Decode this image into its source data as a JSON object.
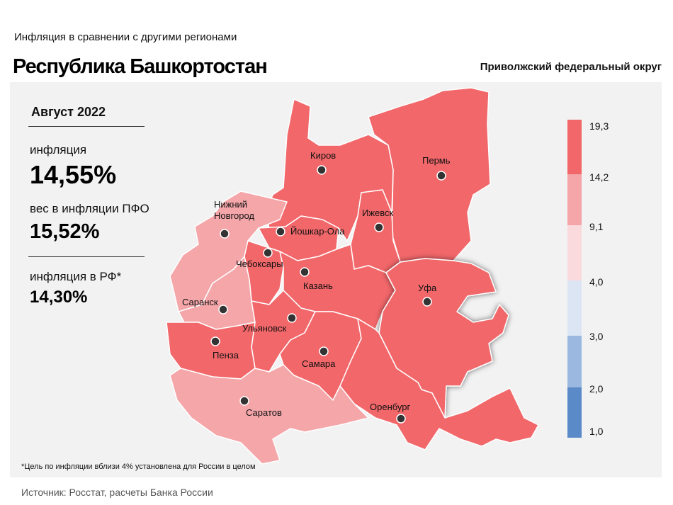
{
  "header": {
    "subtitle": "Инфляция  в сравнении  с другими  регионами",
    "title": "Республика Башкортостан",
    "district": "Приволжский федеральный округ"
  },
  "stats": {
    "month": "Август 2022",
    "inflation_label": "инфляция",
    "inflation_value": "14,55%",
    "weight_label": "вес в инфляции  ПФО",
    "weight_value": "15,52%",
    "rf_label": "инфляция  в РФ*",
    "rf_value": "14,30%"
  },
  "footnote": "*Цель по инфляции вблизи 4% установлена для России в целом",
  "source": "Источник: Росстат, расчеты Банка России",
  "colors": {
    "band_1": "#5b8ac9",
    "band_2": "#9bb8e0",
    "band_3": "#dbe5f4",
    "band_4": "#fadadd",
    "band_5": "#f4a6a9",
    "band_6": "#f2676a"
  },
  "legend": {
    "ticks": [
      "19,3",
      "14,2",
      "9,1",
      "4,0",
      "3,0",
      "2,0",
      "1,0"
    ]
  },
  "cities": [
    {
      "id": "kirov",
      "name": "Киров"
    },
    {
      "id": "perm",
      "name": "Пермь"
    },
    {
      "id": "nn",
      "name": "Нижний"
    },
    {
      "id": "nn2",
      "name": "Новгород"
    },
    {
      "id": "yoshkar",
      "name": "Йошкар-Ола"
    },
    {
      "id": "izhevsk",
      "name": "Ижевск"
    },
    {
      "id": "cheb",
      "name": "Чебоксары"
    },
    {
      "id": "kazan",
      "name": "Казань"
    },
    {
      "id": "ufa",
      "name": "Уфа"
    },
    {
      "id": "saransk",
      "name": "Саранск"
    },
    {
      "id": "ulyan",
      "name": "Ульяновск"
    },
    {
      "id": "penza",
      "name": "Пенза"
    },
    {
      "id": "samara",
      "name": "Самара"
    },
    {
      "id": "orenburg",
      "name": "Оренбург"
    },
    {
      "id": "saratov",
      "name": "Саратов"
    }
  ]
}
